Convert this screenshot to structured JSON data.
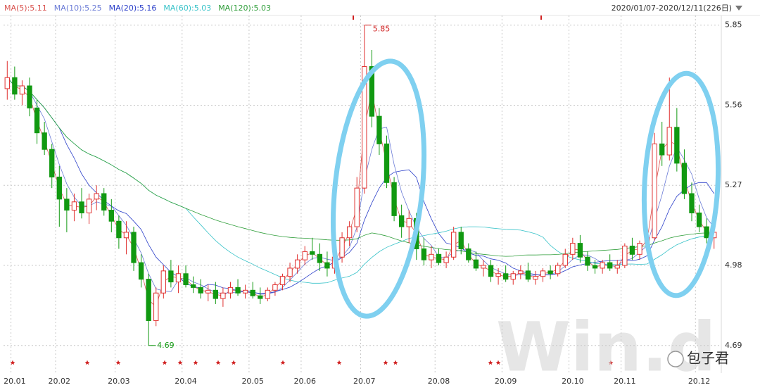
{
  "chart_data": {
    "type": "candlestick",
    "range": "2020/01/07-2020/12/11(226日)",
    "ma": [
      {
        "name": "MA(5):5.11",
        "color": "#d9534f"
      },
      {
        "name": "MA(10):5.25",
        "color": "#6a7bd6"
      },
      {
        "name": "MA(20):5.16",
        "color": "#2b3fc9"
      },
      {
        "name": "MA(60):5.03",
        "color": "#36c2c8"
      },
      {
        "name": "MA(120):5.03",
        "color": "#2f9e3a"
      }
    ],
    "up_color": "#e0302f",
    "down_color": "#119911",
    "ylim": [
      4.59,
      5.89
    ],
    "yticks": [
      4.69,
      4.98,
      5.27,
      5.56,
      5.85
    ],
    "grid": true,
    "high_label": 5.85,
    "low_label": 4.69,
    "watermark": "Win.d",
    "credit": "包子君",
    "categories": [
      null,
      "20.01",
      null,
      null,
      null,
      null,
      null,
      "20.02",
      null,
      null,
      null,
      null,
      null,
      null,
      null,
      "20.03",
      null,
      null,
      null,
      null,
      null,
      null,
      null,
      null,
      "20.04",
      null,
      null,
      null,
      null,
      null,
      null,
      null,
      null,
      "20.05",
      null,
      null,
      null,
      null,
      null,
      null,
      "20.06",
      null,
      null,
      null,
      null,
      null,
      null,
      null,
      "20.07",
      null,
      null,
      null,
      null,
      null,
      null,
      null,
      null,
      null,
      "20.08",
      null,
      null,
      null,
      null,
      null,
      null,
      null,
      null,
      "20.09",
      null,
      null,
      null,
      null,
      null,
      null,
      null,
      null,
      "20.10",
      null,
      null,
      null,
      null,
      null,
      null,
      "20.11",
      null,
      null,
      null,
      null,
      null,
      null,
      null,
      null,
      null,
      "20.12",
      null,
      null
    ],
    "open": [
      5.62,
      5.66,
      5.6,
      5.63,
      5.55,
      5.46,
      5.4,
      5.3,
      5.22,
      5.18,
      5.21,
      5.17,
      5.22,
      5.24,
      5.18,
      5.14,
      5.08,
      5.1,
      4.99,
      4.93,
      4.78,
      4.88,
      4.96,
      4.92,
      4.95,
      4.91,
      4.9,
      4.88,
      4.89,
      4.86,
      4.88,
      4.9,
      4.88,
      4.89,
      4.87,
      4.86,
      4.89,
      4.91,
      4.94,
      4.97,
      5.0,
      5.03,
      5.02,
      4.99,
      4.97,
      5.01,
      5.08,
      5.12,
      5.26,
      5.7,
      5.52,
      5.42,
      5.28,
      5.16,
      5.12,
      5.15,
      5.04,
      5.0,
      5.02,
      4.99,
      5.01,
      5.1,
      5.04,
      5.0,
      4.97,
      4.98,
      4.94,
      4.95,
      4.93,
      4.95,
      4.96,
      4.93,
      4.94,
      4.96,
      4.95,
      4.98,
      5.02,
      5.06,
      5.01,
      4.98,
      4.97,
      4.99,
      4.97,
      4.98,
      5.05,
      5.02,
      5.06,
      5.08,
      5.42,
      5.38,
      5.48,
      5.35,
      5.24,
      5.17,
      5.12,
      5.08
    ],
    "high": [
      5.72,
      5.7,
      5.65,
      5.66,
      5.58,
      5.5,
      5.42,
      5.34,
      5.26,
      5.24,
      5.26,
      5.24,
      5.27,
      5.26,
      5.22,
      5.16,
      5.14,
      5.12,
      5.02,
      4.95,
      4.9,
      4.98,
      5.0,
      4.98,
      4.98,
      4.94,
      4.93,
      4.91,
      4.92,
      4.9,
      4.92,
      4.93,
      4.91,
      4.92,
      4.9,
      4.9,
      4.92,
      4.95,
      4.99,
      5.02,
      5.05,
      5.08,
      5.06,
      5.03,
      5.02,
      5.1,
      5.14,
      5.3,
      5.85,
      5.76,
      5.55,
      5.45,
      5.3,
      5.2,
      5.18,
      5.17,
      5.08,
      5.05,
      5.04,
      5.03,
      5.12,
      5.12,
      5.06,
      5.03,
      5.0,
      5.0,
      4.97,
      4.98,
      4.96,
      4.98,
      4.99,
      4.96,
      4.97,
      4.98,
      4.99,
      5.04,
      5.08,
      5.09,
      5.03,
      5.0,
      5.0,
      5.02,
      5.0,
      5.06,
      5.08,
      5.07,
      5.1,
      5.46,
      5.5,
      5.66,
      5.55,
      5.4,
      5.28,
      5.2,
      5.15,
      5.11
    ],
    "low": [
      5.58,
      5.58,
      5.56,
      5.52,
      5.42,
      5.38,
      5.26,
      5.12,
      5.1,
      5.14,
      5.15,
      5.13,
      5.18,
      5.16,
      5.1,
      5.04,
      5.02,
      4.96,
      4.9,
      4.69,
      4.76,
      4.86,
      4.9,
      4.88,
      4.9,
      4.88,
      4.86,
      4.85,
      4.84,
      4.83,
      4.86,
      4.87,
      4.86,
      4.86,
      4.84,
      4.85,
      4.87,
      4.89,
      4.92,
      4.95,
      4.98,
      5.0,
      4.96,
      4.94,
      4.95,
      4.99,
      5.05,
      5.1,
      5.24,
      5.48,
      5.38,
      5.26,
      5.14,
      5.08,
      5.06,
      5.0,
      4.98,
      4.97,
      4.98,
      4.97,
      5.0,
      5.02,
      4.99,
      4.96,
      4.94,
      4.92,
      4.91,
      4.92,
      4.91,
      4.93,
      4.92,
      4.91,
      4.92,
      4.93,
      4.94,
      4.97,
      5.0,
      4.99,
      4.96,
      4.95,
      4.95,
      4.96,
      4.95,
      4.97,
      5.0,
      5.0,
      5.03,
      5.07,
      5.34,
      5.36,
      5.32,
      5.22,
      5.14,
      5.1,
      5.06,
      5.04
    ],
    "close": [
      5.66,
      5.6,
      5.63,
      5.55,
      5.46,
      5.4,
      5.3,
      5.22,
      5.18,
      5.21,
      5.17,
      5.22,
      5.24,
      5.18,
      5.14,
      5.08,
      5.1,
      4.99,
      4.93,
      4.78,
      4.88,
      4.96,
      4.92,
      4.95,
      4.91,
      4.9,
      4.88,
      4.89,
      4.86,
      4.88,
      4.9,
      4.88,
      4.89,
      4.87,
      4.86,
      4.89,
      4.91,
      4.94,
      4.97,
      5.0,
      5.03,
      5.02,
      4.99,
      4.97,
      5.01,
      5.08,
      5.12,
      5.26,
      5.7,
      5.52,
      5.42,
      5.28,
      5.16,
      5.12,
      5.15,
      5.04,
      5.0,
      5.02,
      4.99,
      5.01,
      5.1,
      5.04,
      5.0,
      4.97,
      4.98,
      4.94,
      4.95,
      4.93,
      4.95,
      4.96,
      4.93,
      4.94,
      4.96,
      4.95,
      4.98,
      5.02,
      5.06,
      5.01,
      4.98,
      4.97,
      4.99,
      4.97,
      4.98,
      5.05,
      5.02,
      5.06,
      5.08,
      5.42,
      5.38,
      5.48,
      5.35,
      5.24,
      5.17,
      5.12,
      5.08,
      5.1
    ]
  }
}
